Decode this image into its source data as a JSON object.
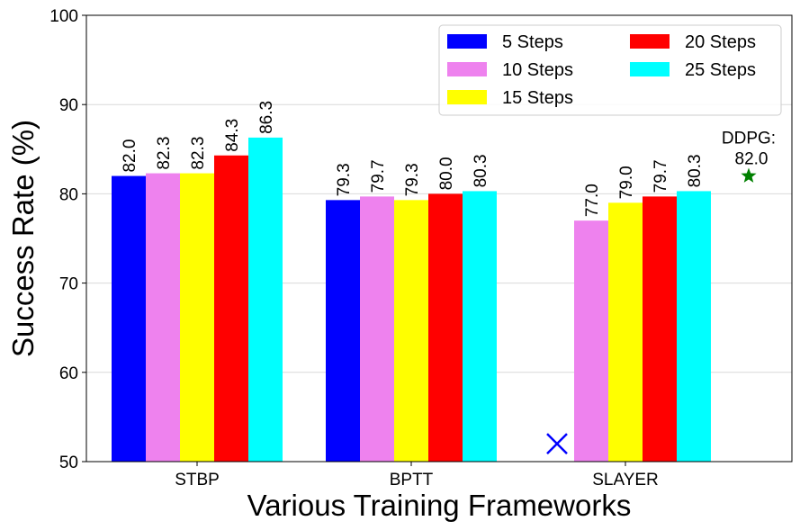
{
  "chart_data": {
    "type": "bar",
    "title": "",
    "xlabel": "Various Training Frameworks",
    "ylabel": "Success Rate (%)",
    "ylim": [
      50,
      100
    ],
    "yticks": [
      50,
      60,
      70,
      80,
      90,
      100
    ],
    "grid": "horizontal",
    "legend_placement": "top-right",
    "categories": [
      "STBP",
      "BPTT",
      "SLAYER"
    ],
    "series": [
      {
        "name": "5 Steps",
        "color": "#0000ff",
        "values": [
          82.0,
          79.3,
          null
        ],
        "labels": [
          "82.0",
          "79.3",
          ""
        ]
      },
      {
        "name": "10 Steps",
        "color": "#ee82ee",
        "values": [
          82.3,
          79.7,
          77.0
        ],
        "labels": [
          "82.3",
          "79.7",
          "77.0"
        ]
      },
      {
        "name": "15 Steps",
        "color": "#ffff00",
        "values": [
          82.3,
          79.3,
          79.0
        ],
        "labels": [
          "82.3",
          "79.3",
          "79.0"
        ]
      },
      {
        "name": "20 Steps",
        "color": "#ff0000",
        "values": [
          84.3,
          80.0,
          79.7
        ],
        "labels": [
          "84.3",
          "80.0",
          "79.7"
        ]
      },
      {
        "name": "25 Steps",
        "color": "#00ffff",
        "values": [
          86.3,
          80.3,
          80.3
        ],
        "labels": [
          "86.3",
          "80.3",
          "80.3"
        ]
      }
    ],
    "missing_marker": {
      "category": "SLAYER",
      "series": "5 Steps",
      "symbol": "x",
      "color": "#0000ff",
      "y": 52
    },
    "reference": {
      "label_line1": "DDPG:",
      "label_line2": "82.0",
      "value": 82.0,
      "symbol": "star",
      "color": "#008000"
    }
  }
}
